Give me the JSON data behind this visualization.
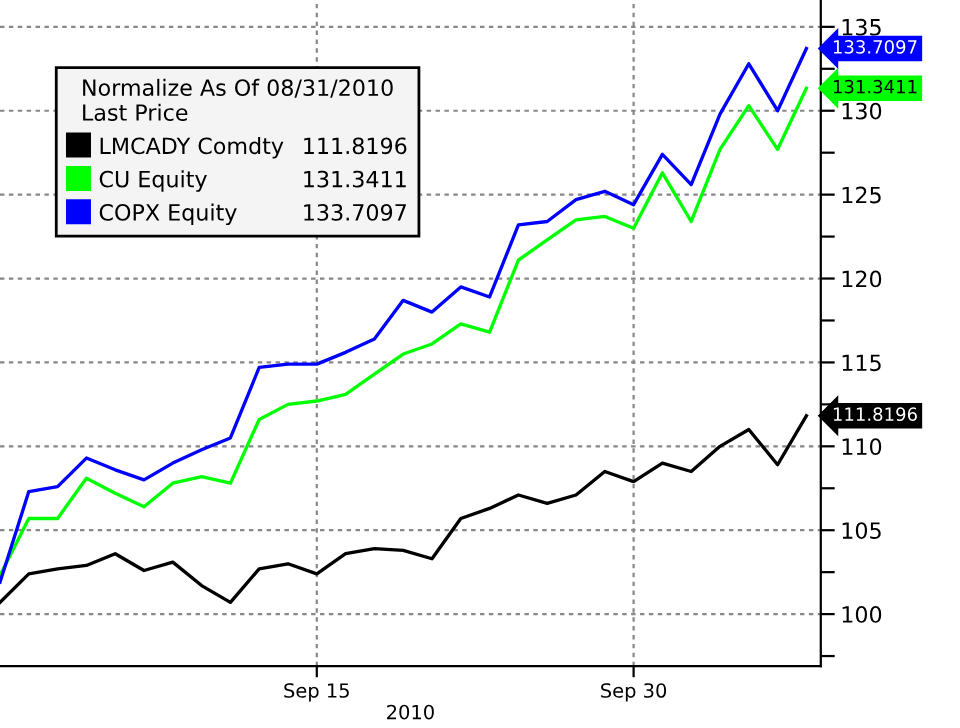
{
  "chart_data": {
    "type": "line",
    "legend_title": "Normalize As Of 08/31/2010\nLast Price",
    "xlabel": "2010",
    "categories": [
      null,
      null,
      null,
      null,
      null,
      null,
      null,
      null,
      null,
      null,
      null,
      "Sep 15",
      null,
      null,
      null,
      null,
      null,
      null,
      null,
      null,
      null,
      null,
      "Sep 30",
      null,
      null,
      null,
      null,
      null,
      null
    ],
    "series": [
      {
        "name": "LMCADY Comdty",
        "color": "#000000",
        "values": [
          100.7,
          102.4,
          102.7,
          102.9,
          103.6,
          102.6,
          103.1,
          101.7,
          100.7,
          102.7,
          103.0,
          102.4,
          103.6,
          103.9,
          103.8,
          103.3,
          105.7,
          106.3,
          107.1,
          106.6,
          107.1,
          108.5,
          107.9,
          109.0,
          108.5,
          110.0,
          111.0,
          108.9,
          111.8196
        ],
        "value_labels": [
          null,
          null,
          null,
          null,
          null,
          null,
          null,
          null,
          null,
          null,
          null,
          null,
          null,
          null,
          null,
          null,
          null,
          null,
          null,
          null,
          null,
          null,
          null,
          null,
          null,
          null,
          null,
          null,
          "111.8196"
        ]
      },
      {
        "name": "CU Equity",
        "color": "#00ff00",
        "values": [
          102.3,
          105.7,
          105.7,
          108.1,
          107.2,
          106.4,
          107.8,
          108.2,
          107.8,
          111.6,
          112.5,
          112.7,
          113.1,
          114.3,
          115.5,
          116.1,
          117.3,
          116.8,
          121.1,
          122.3,
          123.5,
          123.7,
          123.0,
          126.3,
          123.4,
          127.7,
          130.3,
          127.7,
          131.3411
        ],
        "value_labels": [
          null,
          null,
          null,
          null,
          null,
          null,
          null,
          null,
          null,
          null,
          null,
          null,
          null,
          null,
          null,
          null,
          null,
          null,
          null,
          null,
          null,
          null,
          null,
          null,
          null,
          null,
          null,
          null,
          "131.3411"
        ]
      },
      {
        "name": "COPX Equity",
        "color": "#0000ff",
        "values": [
          101.9,
          107.3,
          107.6,
          109.3,
          108.6,
          108.0,
          109.0,
          109.8,
          110.5,
          114.7,
          114.9,
          114.9,
          115.6,
          116.4,
          118.7,
          118.0,
          119.5,
          118.9,
          123.2,
          123.4,
          124.7,
          125.2,
          124.4,
          127.4,
          125.6,
          129.8,
          132.8,
          130.0,
          133.7097
        ],
        "value_labels": [
          null,
          null,
          null,
          null,
          null,
          null,
          null,
          null,
          null,
          null,
          null,
          null,
          null,
          null,
          null,
          null,
          null,
          null,
          null,
          null,
          null,
          null,
          null,
          null,
          null,
          null,
          null,
          null,
          "133.7097"
        ]
      }
    ],
    "ylim": [
      96.9,
      136.6
    ],
    "yticks": [
      {
        "value": 97.5,
        "label": null
      },
      100,
      {
        "value": 102.5,
        "label": null
      },
      105,
      {
        "value": 107.5,
        "label": null
      },
      110,
      {
        "value": 112.5,
        "label": null
      },
      115,
      {
        "value": 117.5,
        "label": null
      },
      120,
      {
        "value": 122.5,
        "label": null
      },
      125,
      {
        "value": 127.5,
        "label": null
      },
      130,
      {
        "value": 132.5,
        "label": null
      },
      135
    ],
    "grid": true,
    "legend": "top left",
    "marker": "none",
    "line_style": "solid"
  }
}
